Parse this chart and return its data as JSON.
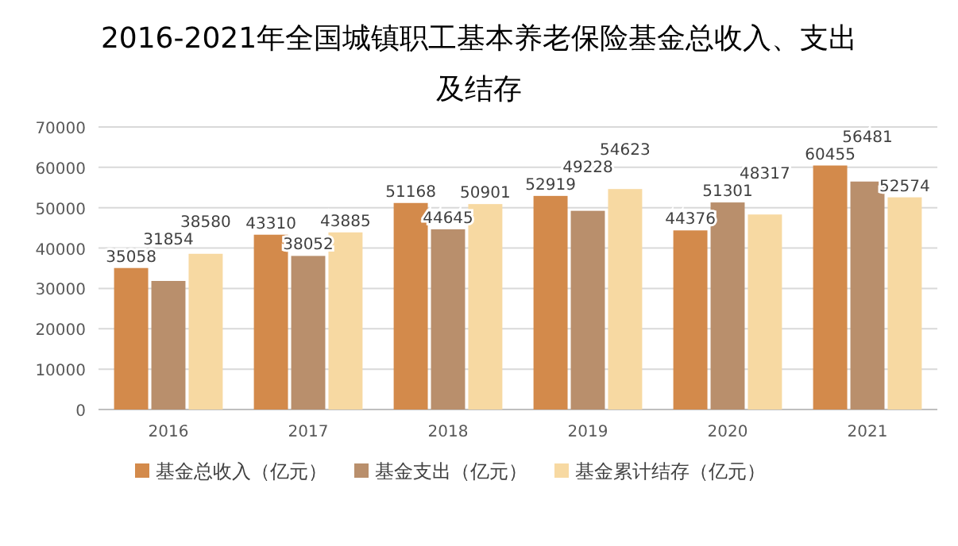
{
  "chart_data": {
    "type": "bar",
    "title": "2016-2021年全国城镇职工基本养老保险基金总收入、支出及结存",
    "categories": [
      "2016",
      "2017",
      "2018",
      "2019",
      "2020",
      "2021"
    ],
    "series": [
      {
        "name": "基金总收入（亿元）",
        "color": "#d38a4b",
        "values": [
          35058,
          43310,
          51168,
          52919,
          44376,
          60455
        ]
      },
      {
        "name": "基金支出（亿元）",
        "color": "#b98f6c",
        "values": [
          31854,
          38052,
          44645,
          49228,
          51301,
          56481
        ]
      },
      {
        "name": "基金累计结存（亿元）",
        "color": "#f7d9a2",
        "values": [
          38580,
          43885,
          50901,
          54623,
          48317,
          52574
        ]
      }
    ],
    "ylim": [
      0,
      70000
    ],
    "yticks": [
      0,
      10000,
      20000,
      30000,
      40000,
      50000,
      60000,
      70000
    ],
    "grid": "y",
    "legend": "bottom",
    "data_labels": true
  }
}
